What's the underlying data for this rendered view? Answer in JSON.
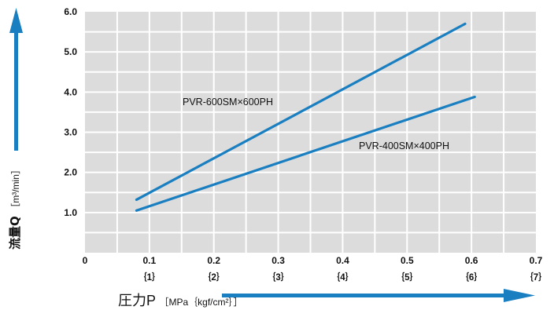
{
  "colors": {
    "plot_bg": "#dcdcdc",
    "grid": "#ffffff",
    "series": "#1a7fc1",
    "arrow": "#1a7fc1"
  },
  "labels": {
    "y_main": "流量Q",
    "y_unit": "［m³/min］",
    "x_main": "圧力P",
    "x_unit": "［MPa｛kgf/cm²｝］"
  },
  "chart_data": {
    "type": "line",
    "xlabel": "圧力P ［MPa｛kgf/cm²｝］",
    "ylabel": "流量Q ［m³/min］",
    "xlim": [
      0,
      0.7
    ],
    "ylim": [
      0,
      6.0
    ],
    "x_ticks": [
      "0",
      "0.1",
      "0.2",
      "0.3",
      "0.4",
      "0.5",
      "0.6",
      "0.7"
    ],
    "x_ticks_secondary": [
      "｛1｝",
      "｛2｝",
      "｛3｝",
      "｛4｝",
      "｛5｝",
      "｛6｝",
      "｛7｝"
    ],
    "y_ticks": [
      "1.0",
      "2.0",
      "3.0",
      "4.0",
      "5.0",
      "6.0"
    ],
    "grid": true,
    "series": [
      {
        "name": "PVR-600SM×600PH",
        "x": [
          0.08,
          0.59
        ],
        "y": [
          1.32,
          5.7
        ]
      },
      {
        "name": "PVR-400SM×400PH",
        "x": [
          0.08,
          0.605
        ],
        "y": [
          1.05,
          3.88
        ]
      }
    ]
  }
}
